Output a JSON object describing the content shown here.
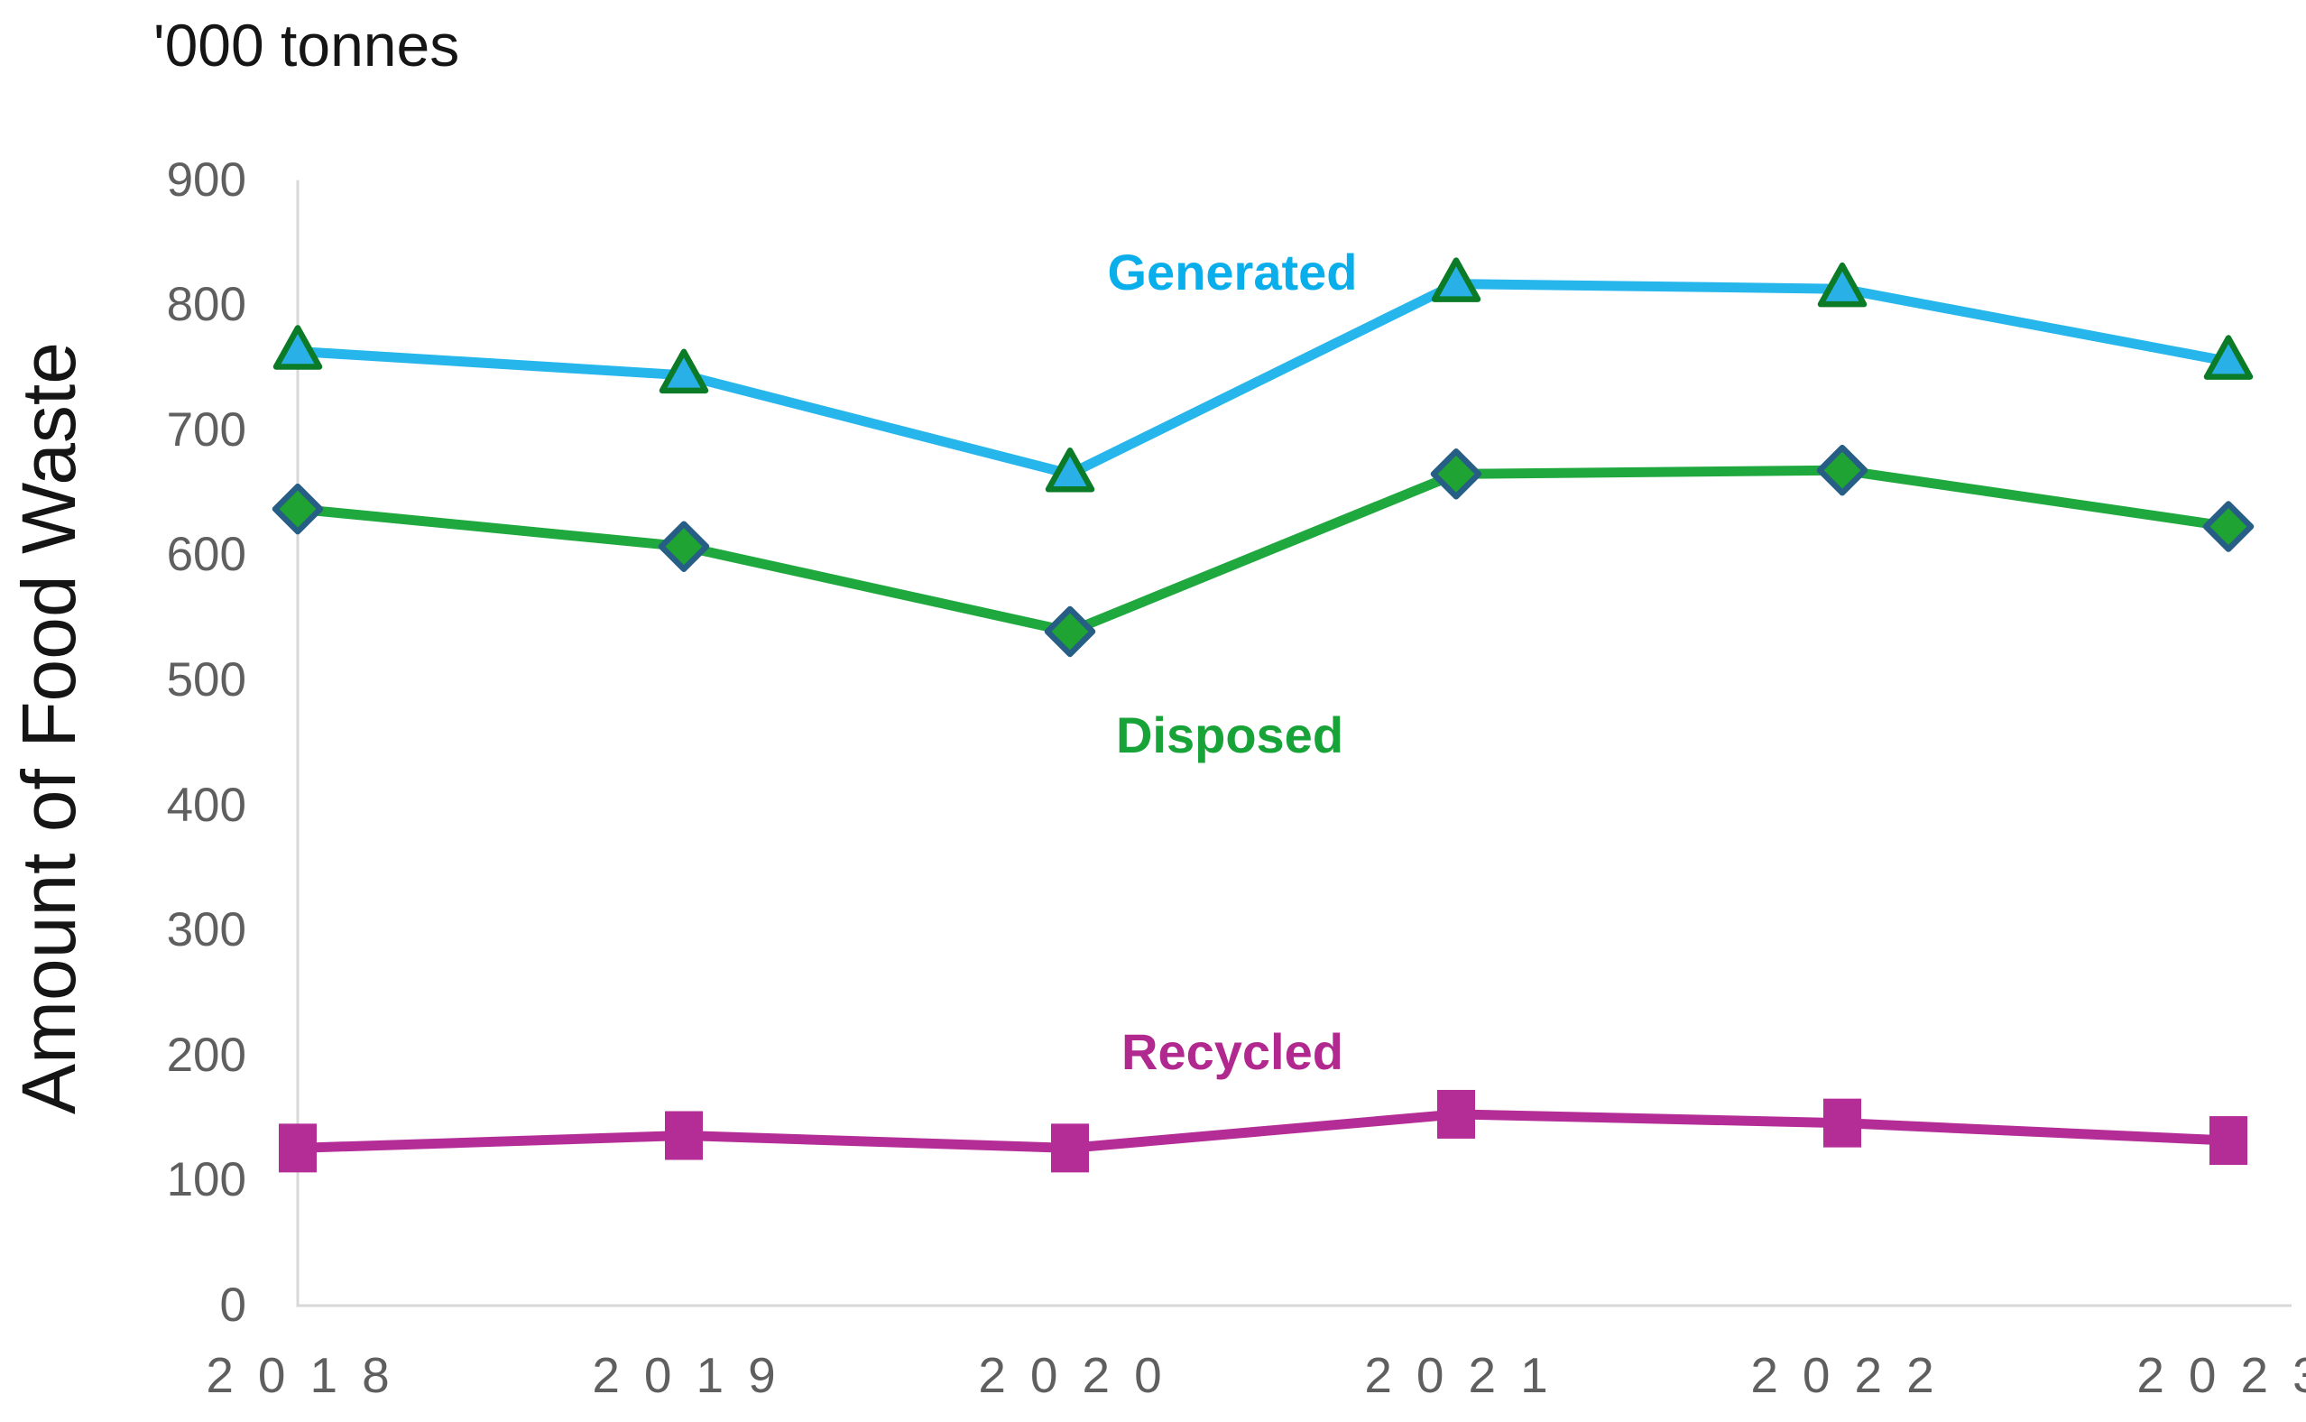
{
  "header": {
    "unit_label": "'000 tonnes"
  },
  "chart_data": {
    "type": "line",
    "title": "'000 tonnes",
    "ylabel": "Amount of Food Waste",
    "xlabel": "",
    "categories": [
      "2018",
      "2019",
      "2020",
      "2021",
      "2022",
      "2023"
    ],
    "series": [
      {
        "name": "Generated",
        "values": [
          763,
          744,
          665,
          817,
          813,
          755
        ],
        "line_color": "#27B6EC",
        "marker": "triangle",
        "marker_fill": "#29B0E6",
        "marker_stroke": "#0C7B28",
        "label_color": "#0AAEEB",
        "label_x": 1366,
        "label_y": 302
      },
      {
        "name": "Disposed",
        "values": [
          637,
          607,
          539,
          665,
          668,
          623
        ],
        "line_color": "#1FA83E",
        "marker": "diamond",
        "marker_fill": "#1FA434",
        "marker_stroke": "#265E86",
        "label_color": "#17A338",
        "label_x": 1363,
        "label_y": 815
      },
      {
        "name": "Recycled",
        "values": [
          126,
          136,
          126,
          153,
          146,
          132
        ],
        "line_color": "#B42D97",
        "marker": "square",
        "marker_fill": "#B42D97",
        "marker_stroke": "#B42D97",
        "label_color": "#B1288F",
        "label_x": 1366,
        "label_y": 1166
      }
    ],
    "y_ticks": [
      900,
      800,
      700,
      600,
      500,
      400,
      300,
      200,
      100,
      0
    ],
    "ylim": [
      0,
      900
    ],
    "grid": false,
    "legend": "inline-series-labels",
    "axis_line_color": "#D8D8D8",
    "tick_label_color": "#5F5F5F"
  }
}
